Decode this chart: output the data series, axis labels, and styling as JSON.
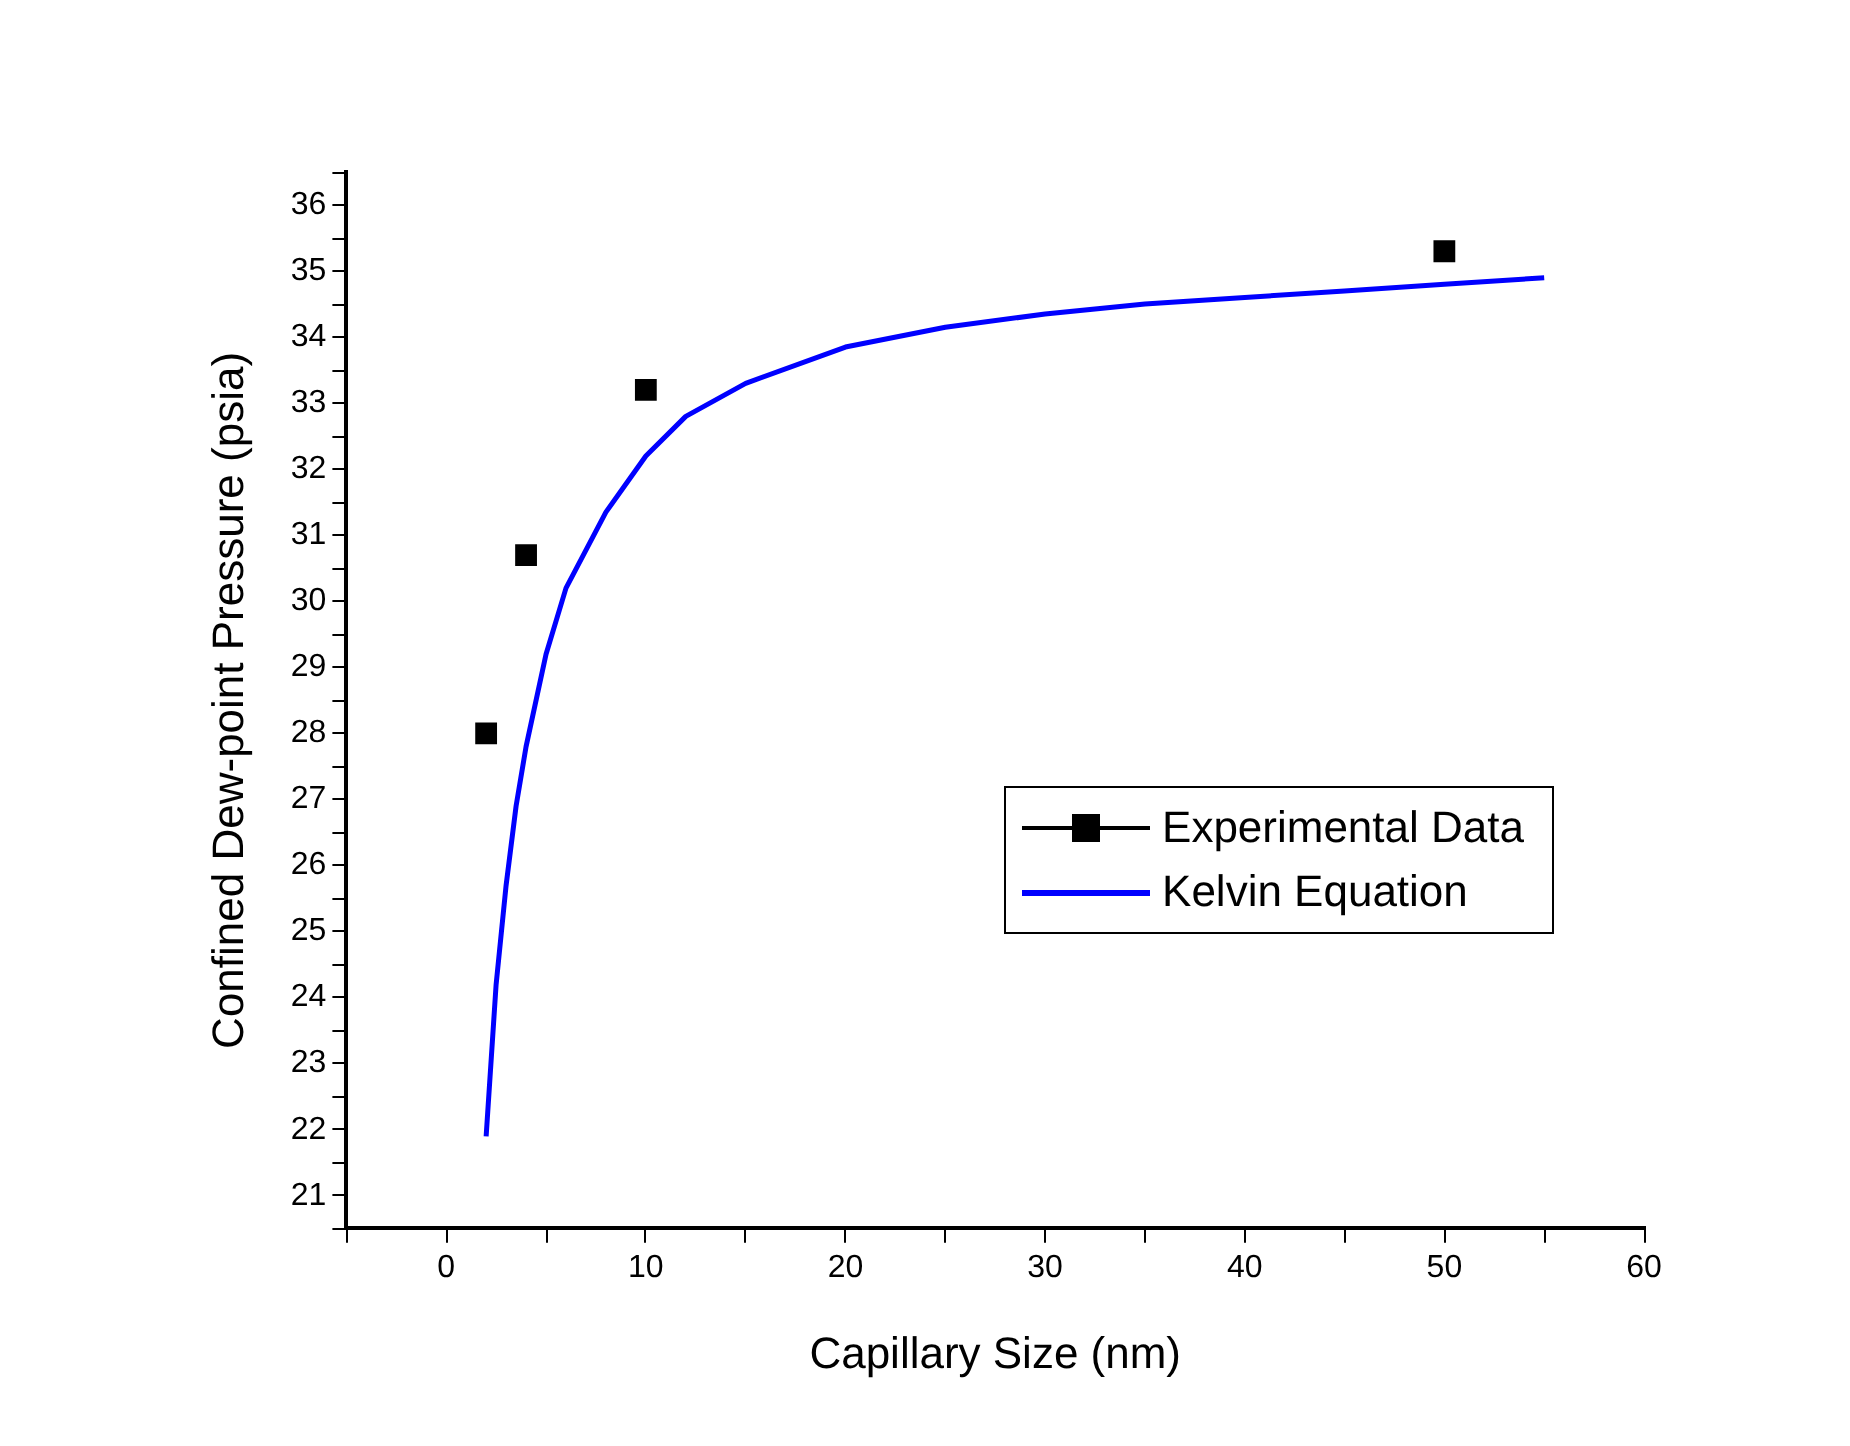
{
  "chart_data": {
    "type": "scatter",
    "xlabel": "Capillary Size (nm)",
    "ylabel": "Confined Dew-point Pressure (psia)",
    "xlim": [
      -5,
      60
    ],
    "xticks": [
      {
        "value": -5,
        "label": null
      },
      0,
      {
        "value": 5,
        "label": null
      },
      10,
      {
        "value": 15,
        "label": null
      },
      20,
      {
        "value": 25,
        "label": null
      },
      30,
      {
        "value": 35,
        "label": null
      },
      40,
      {
        "value": 45,
        "label": null
      },
      50,
      {
        "value": 55,
        "label": null
      },
      60
    ],
    "ylim": [
      20.5,
      36.5
    ],
    "yticks": [
      {
        "value": 20.5,
        "label": null
      },
      21,
      {
        "value": 21.5,
        "label": null
      },
      22,
      {
        "value": 22.5,
        "label": null
      },
      23,
      {
        "value": 23.5,
        "label": null
      },
      24,
      {
        "value": 24.5,
        "label": null
      },
      25,
      {
        "value": 25.5,
        "label": null
      },
      26,
      {
        "value": 26.5,
        "label": null
      },
      27,
      {
        "value": 27.5,
        "label": null
      },
      28,
      {
        "value": 28.5,
        "label": null
      },
      29,
      {
        "value": 29.5,
        "label": null
      },
      30,
      {
        "value": 30.5,
        "label": null
      },
      31,
      {
        "value": 31.5,
        "label": null
      },
      32,
      {
        "value": 32.5,
        "label": null
      },
      33,
      {
        "value": 33.5,
        "label": null
      },
      34,
      {
        "value": 34.5,
        "label": null
      },
      35,
      {
        "value": 35.5,
        "label": null
      },
      36,
      {
        "value": 36.5,
        "label": null
      }
    ],
    "grid": false,
    "legend": "right",
    "series": [
      {
        "name": "Experimental Data",
        "color": "#000000",
        "marker": "square",
        "x": [
          2,
          4,
          10,
          50
        ],
        "values": [
          28.0,
          30.7,
          33.2,
          35.3
        ]
      },
      {
        "name": "Kelvin Equation",
        "type": "line",
        "color": "#0000ff",
        "marker": "none",
        "line_style": "solid",
        "x": [
          2,
          2.5,
          3,
          3.5,
          4,
          5,
          6,
          8,
          10,
          12,
          15,
          20,
          25,
          30,
          35,
          40,
          45,
          50,
          55
        ],
        "values": [
          21.9,
          24.2,
          25.7,
          26.9,
          27.8,
          29.2,
          30.2,
          31.35,
          32.2,
          32.8,
          33.3,
          33.85,
          34.15,
          34.35,
          34.5,
          34.6,
          34.7,
          34.8,
          34.9
        ]
      }
    ]
  }
}
